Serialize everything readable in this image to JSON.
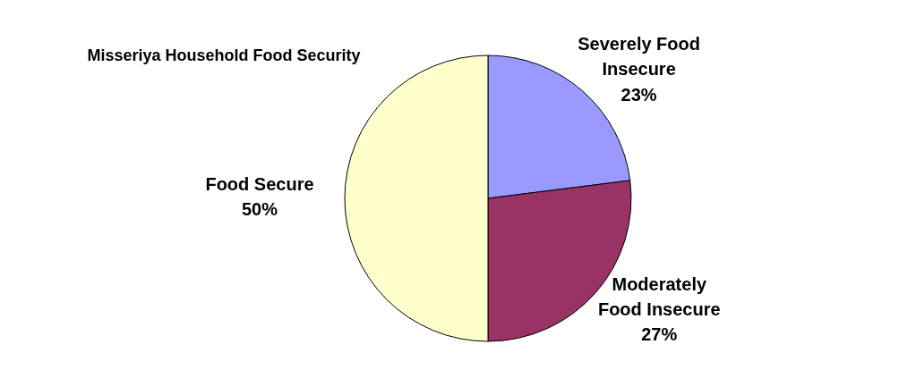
{
  "chart_data": {
    "type": "pie",
    "title": "Misseriya Household Food Security",
    "categories": [
      "Severely Food Insecure",
      "Moderately Food Insecure",
      "Food Secure"
    ],
    "values": [
      23,
      27,
      50
    ],
    "value_labels": [
      "23%",
      "27%",
      "50%"
    ],
    "colors": [
      "#9999ff",
      "#993366",
      "#ffffcc"
    ]
  }
}
